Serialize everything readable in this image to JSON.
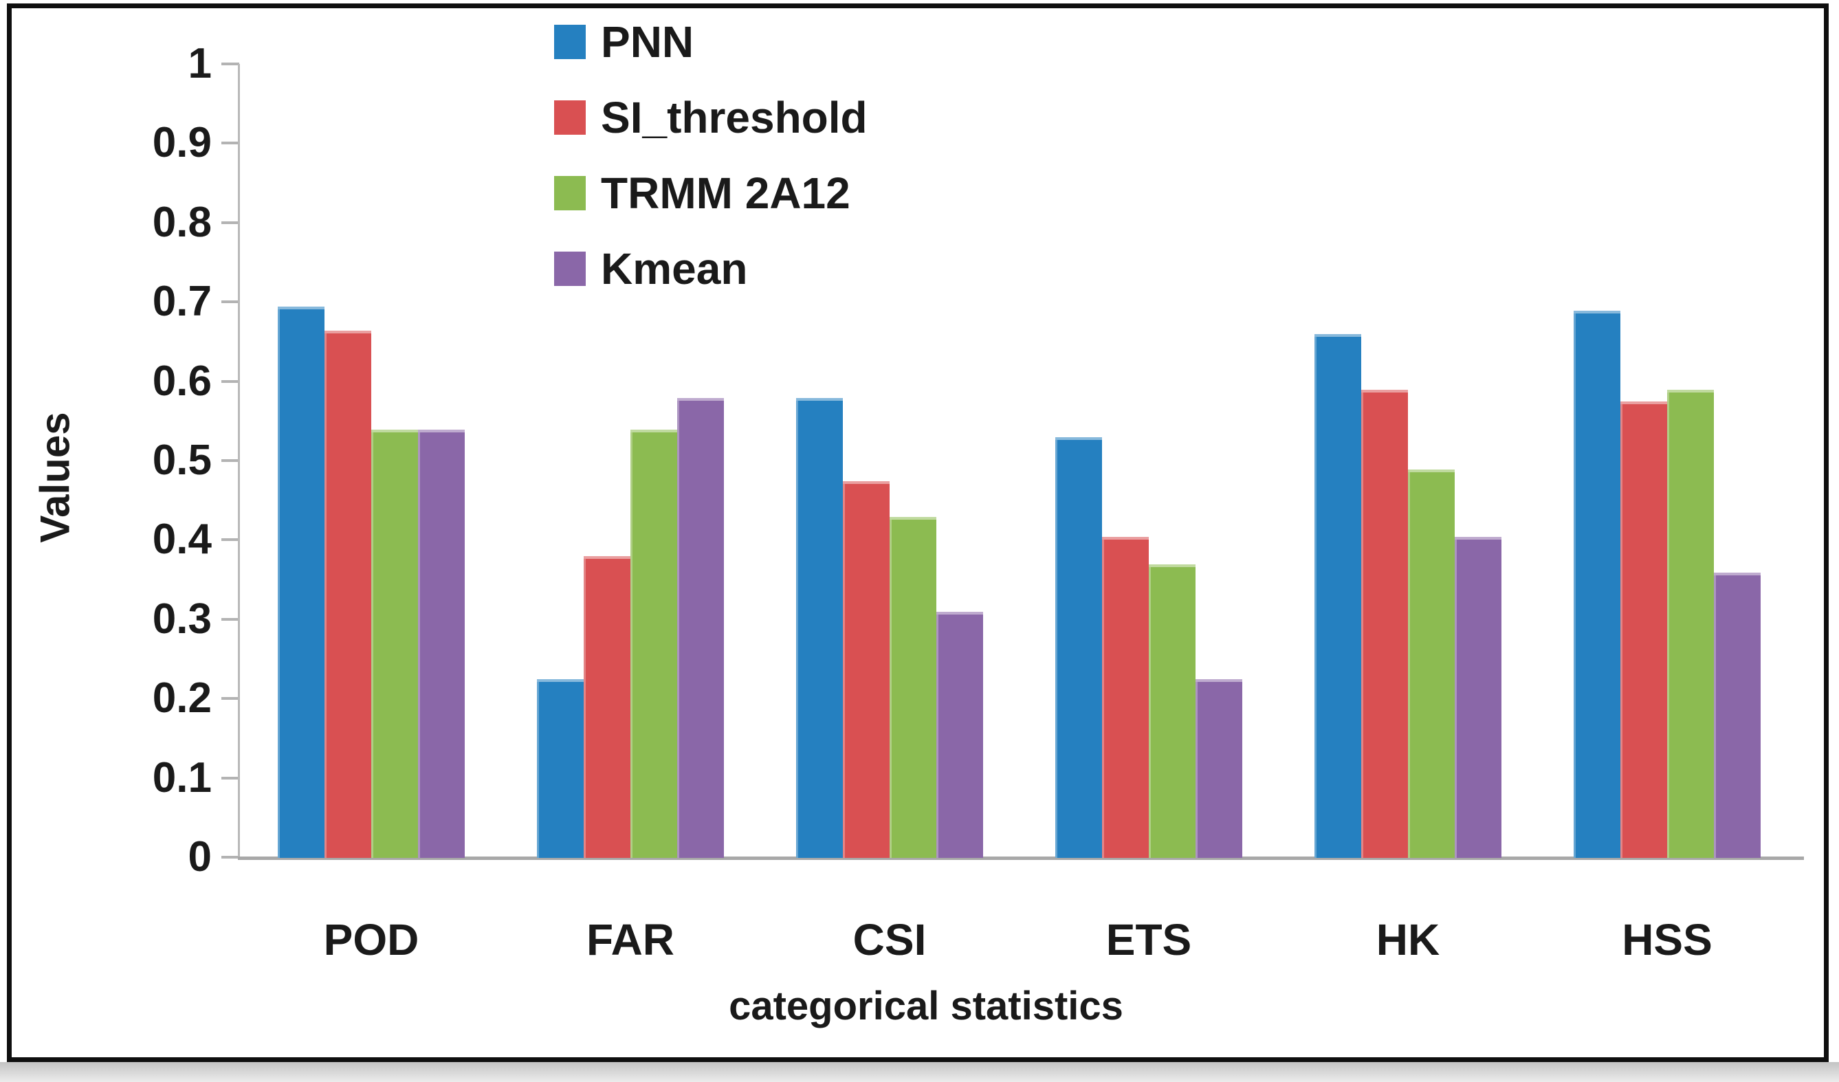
{
  "figure": {
    "kind": "grouped-bar-chart-screenshot"
  },
  "axis": {
    "yticks": [
      "1",
      "0.9",
      "0.8",
      "0.7",
      "0.6",
      "0.5",
      "0.4",
      "0.3",
      "0.2",
      "0.1",
      "0"
    ]
  },
  "chart_data": {
    "type": "bar",
    "title": "",
    "xlabel": "categorical statistics",
    "ylabel": "Values",
    "categories": [
      "POD",
      "FAR",
      "CSI",
      "ETS",
      "HK",
      "HSS"
    ],
    "series": [
      {
        "name": "PNN",
        "color": "#2580C0",
        "values": [
          0.695,
          0.225,
          0.58,
          0.53,
          0.66,
          0.69
        ]
      },
      {
        "name": "SI_threshold",
        "color": "#D95052",
        "values": [
          0.665,
          0.38,
          0.475,
          0.405,
          0.59,
          0.575
        ]
      },
      {
        "name": "TRMM 2A12",
        "color": "#8CBB51",
        "values": [
          0.54,
          0.54,
          0.43,
          0.37,
          0.49,
          0.59
        ]
      },
      {
        "name": "Kmean",
        "color": "#8A67A8",
        "values": [
          0.54,
          0.58,
          0.31,
          0.225,
          0.405,
          0.36
        ]
      }
    ],
    "ylim": [
      0,
      1
    ],
    "ytick_step": 0.1,
    "grid": false,
    "legend_position": "top-inside-left-of-center",
    "colors": {
      "axis_line": "#b3b3b3",
      "baseline": "#a8a8a8",
      "text": "#1a1a1a",
      "frame_border": "#0f0f0f",
      "bottom_strip": "#c3c3c3"
    }
  }
}
